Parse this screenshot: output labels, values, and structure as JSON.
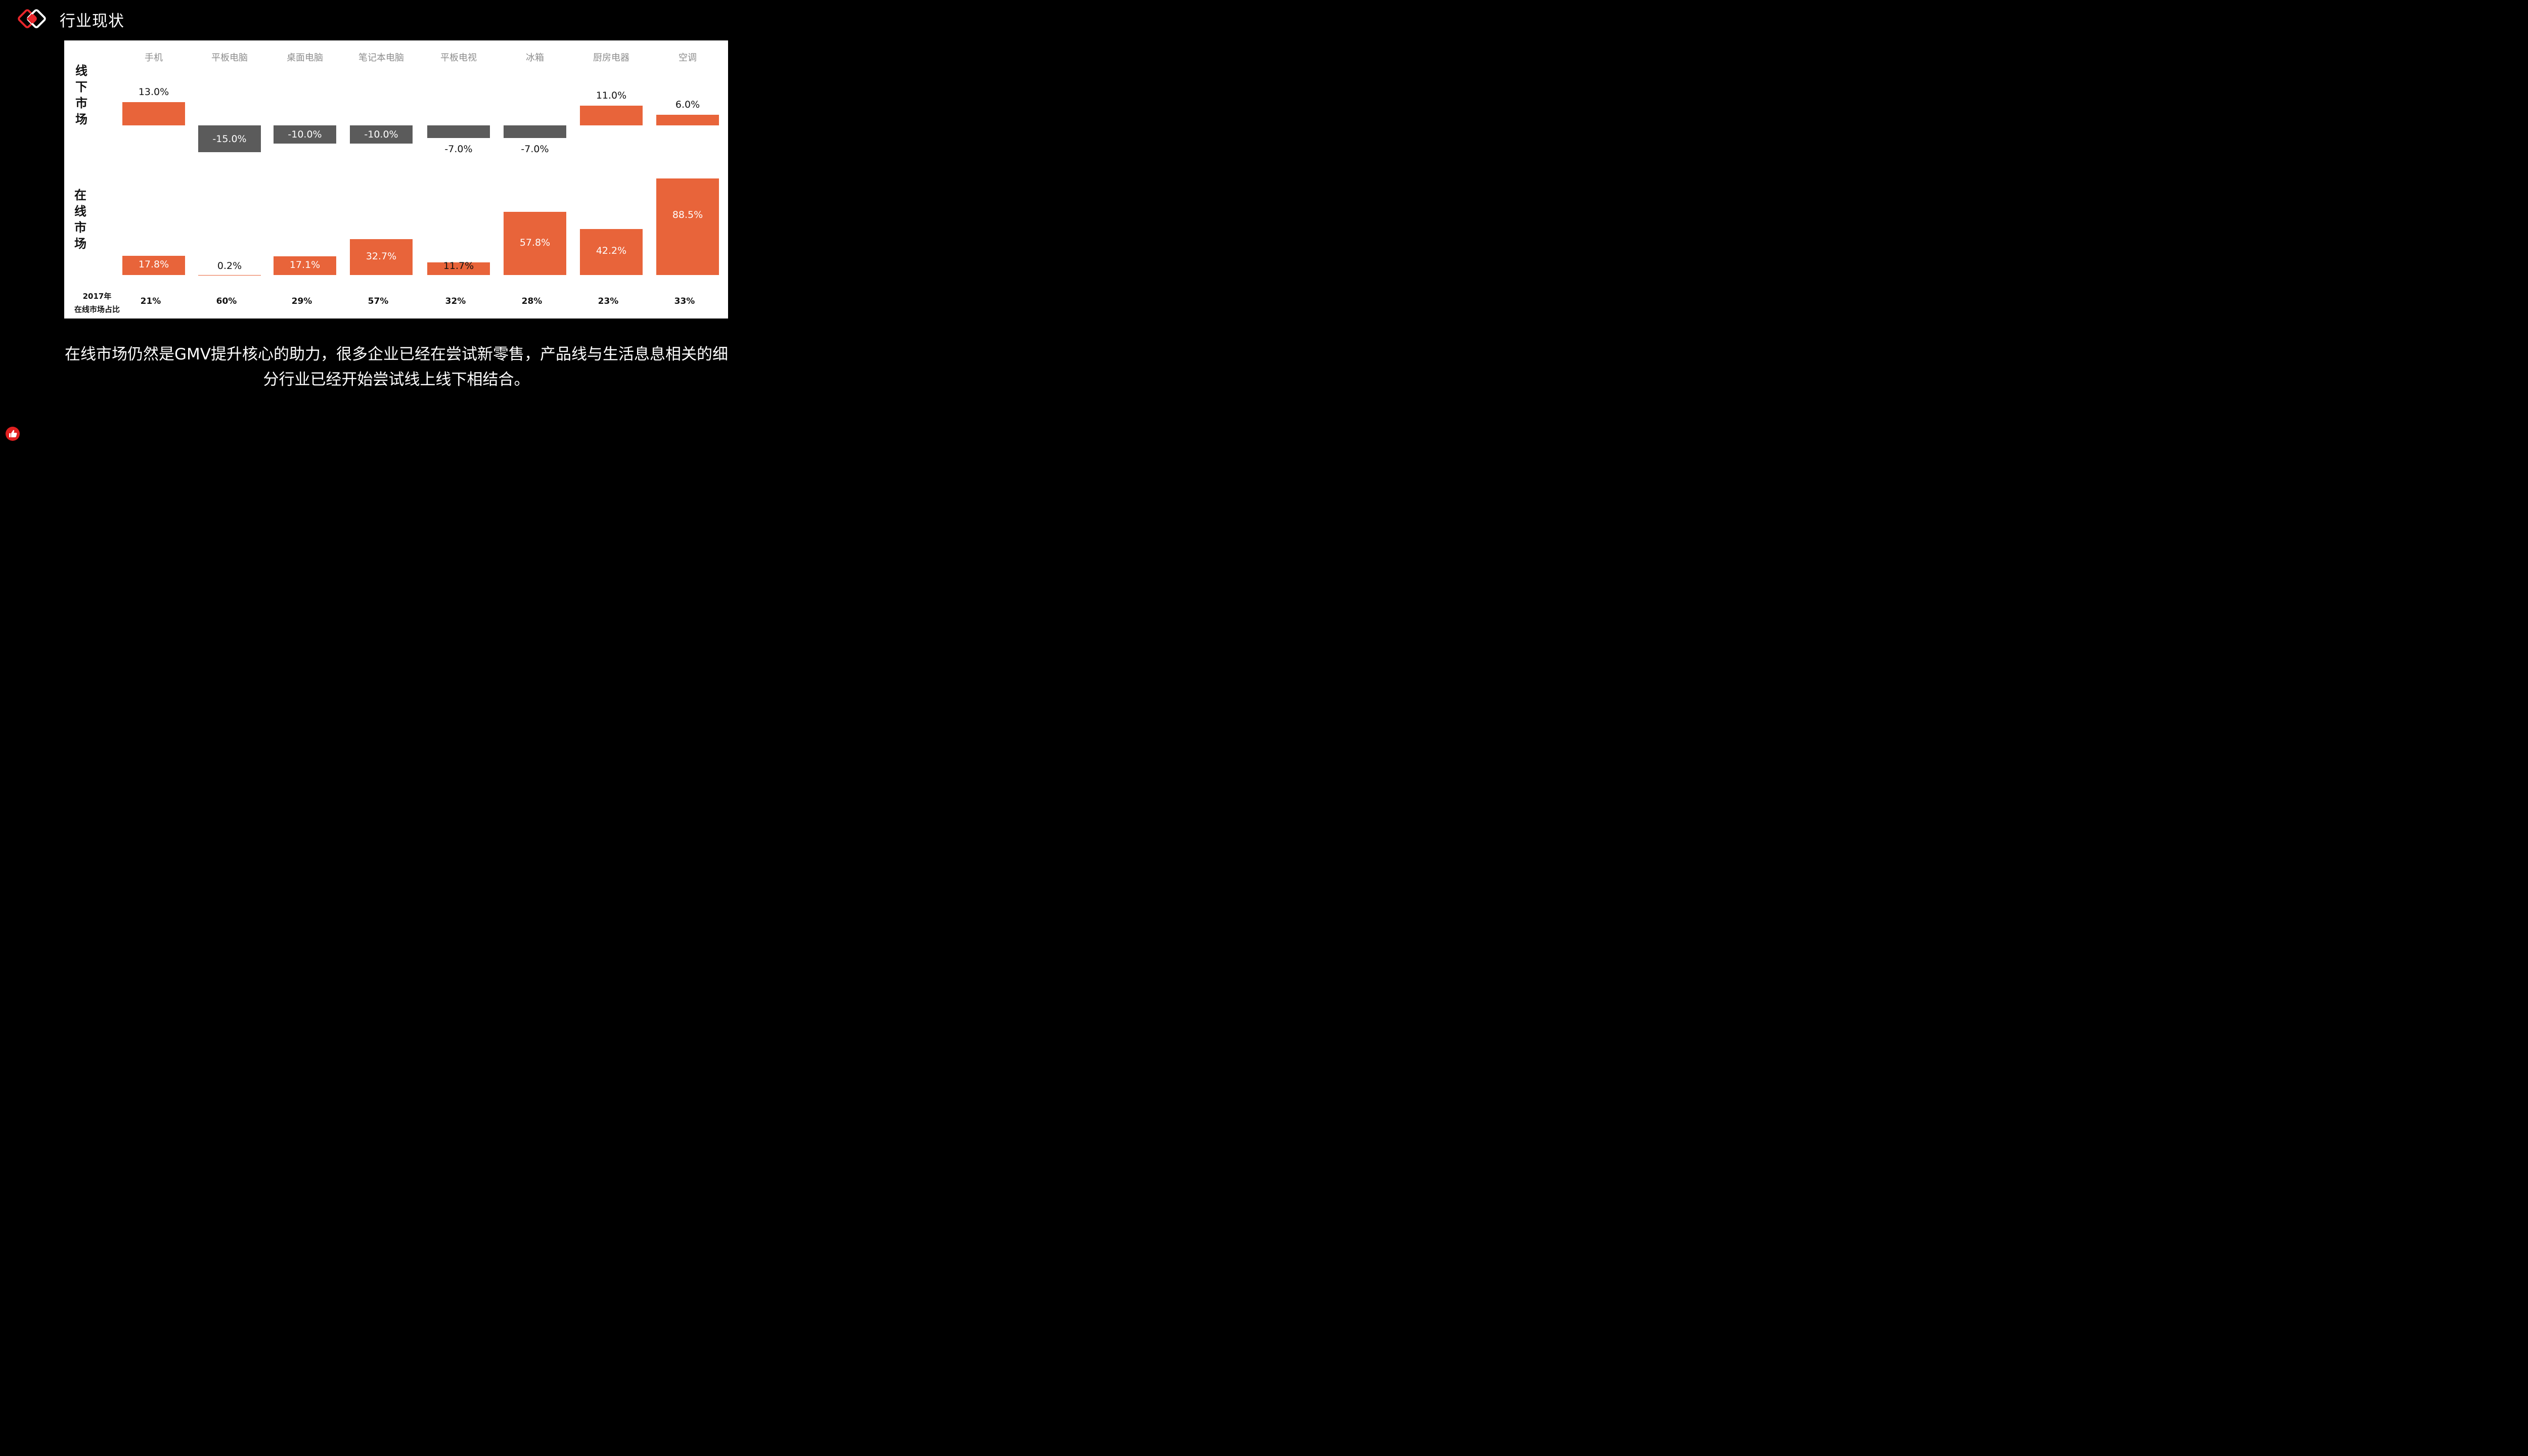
{
  "header": {
    "title": "行业现状"
  },
  "caption": "在线市场仍然是GMV提升核心的助力，很多企业已经在尝试新零售，产品线与生活息息相关的细分行业已经开始尝试线上线下相结合。",
  "chart_data": {
    "type": "bar",
    "categories": [
      "手机",
      "平板电脑",
      "桌面电脑",
      "笔记本电脑",
      "平板电视",
      "冰箱",
      "厨房电器",
      "空调"
    ],
    "series": [
      {
        "name": "线下市场",
        "values": [
          13.0,
          -15.0,
          -10.0,
          -10.0,
          -7.0,
          -7.0,
          11.0,
          6.0
        ],
        "labels": [
          "13.0%",
          "-15.0%",
          "-10.0%",
          "-10.0%",
          "-7.0%",
          "-7.0%",
          "11.0%",
          "6.0%"
        ]
      },
      {
        "name": "在线市场",
        "values": [
          17.8,
          0.2,
          17.1,
          32.7,
          11.7,
          57.8,
          42.2,
          88.5
        ],
        "labels": [
          "17.8%",
          "0.2%",
          "17.1%",
          "32.7%",
          "11.7%",
          "57.8%",
          "42.2%",
          "88.5%"
        ]
      }
    ],
    "row_labels": {
      "offline": [
        "线",
        "下",
        "市",
        "场"
      ],
      "online": [
        "在",
        "线",
        "市",
        "场"
      ]
    },
    "footer": {
      "label_line1": "2017年",
      "label_line2": "在线市场占比",
      "values": [
        "21%",
        "60%",
        "29%",
        "57%",
        "32%",
        "28%",
        "23%",
        "33%"
      ]
    },
    "colors": {
      "positive": "#e8643a",
      "negative": "#5b5b5b"
    }
  }
}
